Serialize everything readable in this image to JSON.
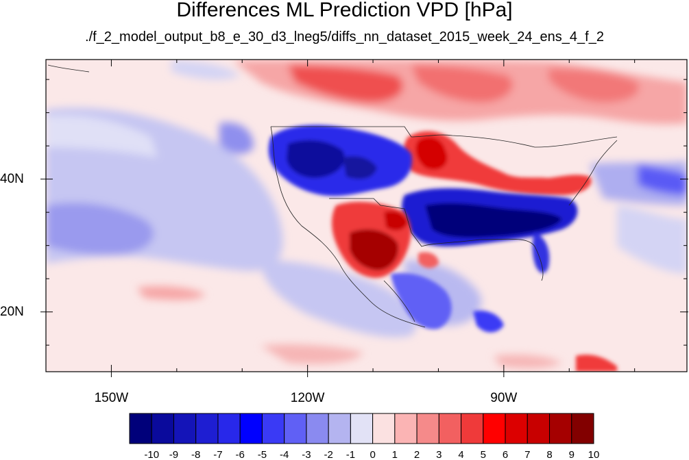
{
  "title": "Differences ML Prediction VPD [hPa]",
  "subtitle": "./f_2_model_output_b8_e_30_d3_lneg5/diffs_nn_dataset_2015_week_24_ens_4_f_2",
  "map": {
    "projection": "cylindrical-equidistant",
    "lon_range": [
      -160,
      -62
    ],
    "lat_range": [
      11,
      58
    ],
    "lon_tick_labels": [
      "150W",
      "120W",
      "90W"
    ],
    "lon_tick_values": [
      -150,
      -120,
      -90
    ],
    "lat_tick_labels": [
      "20N",
      "40N"
    ],
    "lat_tick_values": [
      20,
      40
    ],
    "field": "difference in VPD",
    "pattern": [
      {
        "region": "western-us-intermountain",
        "sign": "negative",
        "magnitude": -8
      },
      {
        "region": "central-eastern-us-southern-plains-to-carolinas",
        "sign": "negative",
        "magnitude": -9
      },
      {
        "region": "desert-southwest-northern-mexico",
        "sign": "positive",
        "magnitude": 8
      },
      {
        "region": "northern-plains-great-lakes",
        "sign": "positive",
        "magnitude": 5
      },
      {
        "region": "canada-north",
        "sign": "positive",
        "magnitude": 3
      },
      {
        "region": "eastern-pacific-ocean",
        "sign": "negative",
        "magnitude": -2
      }
    ]
  },
  "colorbar": {
    "labels": [
      "-10",
      "-9",
      "-8",
      "-7",
      "-6",
      "-5",
      "-4",
      "-3",
      "-2",
      "-1",
      "0",
      "1",
      "2",
      "3",
      "4",
      "5",
      "6",
      "7",
      "8",
      "9",
      "10"
    ],
    "colors": [
      "#00007a",
      "#0a0a9c",
      "#1414b8",
      "#1e1ed2",
      "#2828ea",
      "#0000ff",
      "#3a3af5",
      "#6060f5",
      "#8a8af0",
      "#b4b4f0",
      "#e2e2f6",
      "#fbe1e1",
      "#fbb4b4",
      "#f58a8a",
      "#f26060",
      "#ef3a3a",
      "#ff0000",
      "#dc0000",
      "#c80000",
      "#a50000",
      "#820000"
    ]
  }
}
